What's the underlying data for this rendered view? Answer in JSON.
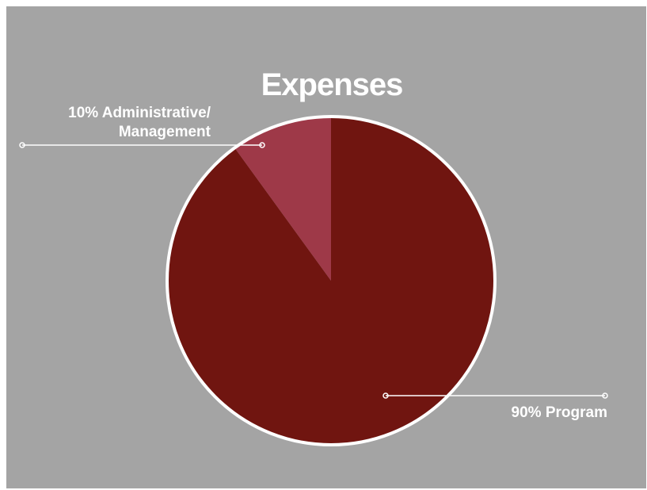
{
  "chart_data": {
    "type": "pie",
    "title": "Expenses",
    "slices": [
      {
        "label_line1": "90% Program",
        "label_line2": "",
        "value": 90,
        "color": "#701510"
      },
      {
        "label_line1": "10% Administrative/",
        "label_line2": "Management",
        "value": 10,
        "color": "#9e3948"
      }
    ],
    "slice_border_color": "#ffffff",
    "background_color": "#a4a4a4",
    "leader_line_color": "#ffffff",
    "start_position": "12 o'clock, slices clockwise"
  }
}
